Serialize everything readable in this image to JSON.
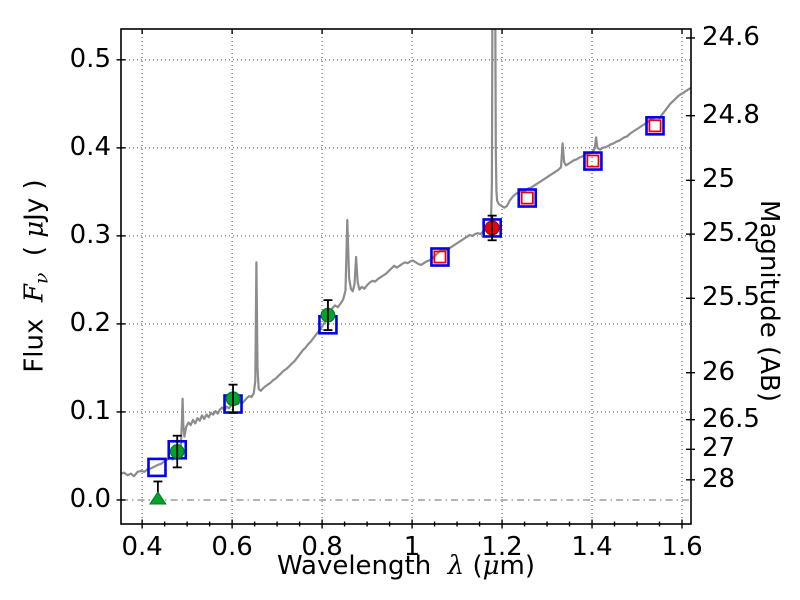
{
  "chart_data": {
    "type": "line",
    "title": "",
    "description": "Galaxy SED: best-fit model spectrum (gray) with observed and model photometry",
    "labels": {
      "x_prefix": "Wavelength  ",
      "x_lambda": "λ",
      "x_open": " (",
      "x_mu": "μ",
      "x_close": "m)",
      "y_flux": "Flux  ",
      "y_F": "F",
      "y_nu": "ν",
      "y_unit_open": "  ( ",
      "y_mu": "μ",
      "y_unit_close": "Jy )",
      "y_right": "Magnitude (AB)"
    },
    "axes": {
      "xlim": [
        0.353,
        1.62
      ],
      "ylim_flux": [
        -0.0273,
        0.535
      ],
      "x_ticks": [
        0.4,
        0.6,
        0.8,
        1.0,
        1.2,
        1.4,
        1.6
      ],
      "x_tick_labels": [
        "0.4",
        "0.6",
        "0.8",
        "1",
        "1.2",
        "1.4",
        "1.6"
      ],
      "x_minor_step": 0.05,
      "y_ticks": [
        0.0,
        0.1,
        0.2,
        0.3,
        0.4,
        0.5
      ],
      "y_tick_labels": [
        "0.0",
        "0.1",
        "0.2",
        "0.3",
        "0.4",
        "0.5"
      ],
      "mag_ticks": [
        24.6,
        24.8,
        25.0,
        25.2,
        25.5,
        26.0,
        26.5,
        27.0,
        28.0
      ],
      "mag_tick_labels": [
        "24.6",
        "24.8",
        "25",
        "25.2",
        "25.5",
        "26",
        "26.5",
        "27",
        "28"
      ],
      "mag_zero_point_ujy": 23.9,
      "grid": "dotted",
      "zero_line_style": "dash-dot"
    },
    "colors": {
      "spectrum": "#8c8c8c",
      "blue_square": "#0000ee",
      "red": "#ee0000",
      "red_dark": "#990000",
      "green_fill": "#00a32c",
      "green_edge": "#067a20",
      "errorbar": "#000000",
      "grid": "#555555",
      "zero_line": "#888888",
      "spine": "#000000"
    },
    "spectrum": {
      "name": "best-fit model spectrum",
      "points": [
        [
          0.353,
          0.03
        ],
        [
          0.36,
          0.031
        ],
        [
          0.368,
          0.028
        ],
        [
          0.375,
          0.03
        ],
        [
          0.382,
          0.027
        ],
        [
          0.39,
          0.032
        ],
        [
          0.398,
          0.033
        ],
        [
          0.405,
          0.032
        ],
        [
          0.412,
          0.035
        ],
        [
          0.42,
          0.036
        ],
        [
          0.428,
          0.038
        ],
        [
          0.435,
          0.04
        ],
        [
          0.442,
          0.041
        ],
        [
          0.45,
          0.044
        ],
        [
          0.456,
          0.046
        ],
        [
          0.462,
          0.048
        ],
        [
          0.468,
          0.046
        ],
        [
          0.474,
          0.05
        ],
        [
          0.48,
          0.054
        ],
        [
          0.486,
          0.06
        ],
        [
          0.4885,
          0.092
        ],
        [
          0.49,
          0.115
        ],
        [
          0.4915,
          0.085
        ],
        [
          0.494,
          0.072
        ],
        [
          0.498,
          0.083
        ],
        [
          0.503,
          0.088
        ],
        [
          0.508,
          0.085
        ],
        [
          0.513,
          0.091
        ],
        [
          0.518,
          0.087
        ],
        [
          0.523,
          0.093
        ],
        [
          0.528,
          0.09
        ],
        [
          0.533,
          0.096
        ],
        [
          0.538,
          0.092
        ],
        [
          0.543,
          0.097
        ],
        [
          0.548,
          0.094
        ],
        [
          0.553,
          0.099
        ],
        [
          0.558,
          0.097
        ],
        [
          0.563,
          0.101
        ],
        [
          0.568,
          0.098
        ],
        [
          0.573,
          0.103
        ],
        [
          0.578,
          0.105
        ],
        [
          0.583,
          0.102
        ],
        [
          0.588,
          0.106
        ],
        [
          0.593,
          0.104
        ],
        [
          0.598,
          0.108
        ],
        [
          0.603,
          0.11
        ],
        [
          0.608,
          0.112
        ],
        [
          0.613,
          0.109
        ],
        [
          0.618,
          0.112
        ],
        [
          0.623,
          0.11
        ],
        [
          0.628,
          0.113
        ],
        [
          0.633,
          0.116
        ],
        [
          0.638,
          0.118
        ],
        [
          0.643,
          0.117
        ],
        [
          0.648,
          0.121
        ],
        [
          0.6515,
          0.135
        ],
        [
          0.654,
          0.27
        ],
        [
          0.6565,
          0.15
        ],
        [
          0.659,
          0.126
        ],
        [
          0.664,
          0.124
        ],
        [
          0.669,
          0.127
        ],
        [
          0.674,
          0.129
        ],
        [
          0.679,
          0.131
        ],
        [
          0.685,
          0.133
        ],
        [
          0.691,
          0.136
        ],
        [
          0.697,
          0.138
        ],
        [
          0.703,
          0.141
        ],
        [
          0.709,
          0.144
        ],
        [
          0.715,
          0.147
        ],
        [
          0.721,
          0.149
        ],
        [
          0.727,
          0.152
        ],
        [
          0.733,
          0.155
        ],
        [
          0.739,
          0.158
        ],
        [
          0.745,
          0.162
        ],
        [
          0.751,
          0.166
        ],
        [
          0.757,
          0.17
        ],
        [
          0.763,
          0.173
        ],
        [
          0.769,
          0.177
        ],
        [
          0.775,
          0.18
        ],
        [
          0.781,
          0.184
        ],
        [
          0.787,
          0.188
        ],
        [
          0.793,
          0.192
        ],
        [
          0.799,
          0.196
        ],
        [
          0.805,
          0.201
        ],
        [
          0.811,
          0.207
        ],
        [
          0.817,
          0.213
        ],
        [
          0.823,
          0.218
        ],
        [
          0.829,
          0.221
        ],
        [
          0.835,
          0.219
        ],
        [
          0.841,
          0.223
        ],
        [
          0.847,
          0.228
        ],
        [
          0.852,
          0.238
        ],
        [
          0.856,
          0.318
        ],
        [
          0.86,
          0.252
        ],
        [
          0.864,
          0.24
        ],
        [
          0.868,
          0.237
        ],
        [
          0.872,
          0.245
        ],
        [
          0.8755,
          0.276
        ],
        [
          0.879,
          0.248
        ],
        [
          0.883,
          0.239
        ],
        [
          0.888,
          0.242
        ],
        [
          0.894,
          0.24
        ],
        [
          0.9,
          0.244
        ],
        [
          0.906,
          0.247
        ],
        [
          0.912,
          0.249
        ],
        [
          0.918,
          0.248
        ],
        [
          0.924,
          0.251
        ],
        [
          0.93,
          0.253
        ],
        [
          0.936,
          0.255
        ],
        [
          0.942,
          0.257
        ],
        [
          0.948,
          0.26
        ],
        [
          0.954,
          0.263
        ],
        [
          0.96,
          0.266
        ],
        [
          0.966,
          0.264
        ],
        [
          0.972,
          0.266
        ],
        [
          0.978,
          0.268
        ],
        [
          0.984,
          0.27
        ],
        [
          0.99,
          0.269
        ],
        [
          0.996,
          0.271
        ],
        [
          1.002,
          0.272
        ],
        [
          1.008,
          0.27
        ],
        [
          1.014,
          0.268
        ],
        [
          1.02,
          0.267
        ],
        [
          1.026,
          0.269
        ],
        [
          1.032,
          0.271
        ],
        [
          1.038,
          0.272
        ],
        [
          1.044,
          0.274
        ],
        [
          1.05,
          0.277
        ],
        [
          1.056,
          0.28
        ],
        [
          1.062,
          0.283
        ],
        [
          1.068,
          0.285
        ],
        [
          1.074,
          0.283
        ],
        [
          1.08,
          0.285
        ],
        [
          1.086,
          0.287
        ],
        [
          1.092,
          0.289
        ],
        [
          1.098,
          0.291
        ],
        [
          1.104,
          0.293
        ],
        [
          1.11,
          0.295
        ],
        [
          1.116,
          0.297
        ],
        [
          1.122,
          0.299
        ],
        [
          1.128,
          0.301
        ],
        [
          1.134,
          0.3
        ],
        [
          1.14,
          0.302
        ],
        [
          1.146,
          0.303
        ],
        [
          1.152,
          0.302
        ],
        [
          1.158,
          0.305
        ],
        [
          1.164,
          0.307
        ],
        [
          1.17,
          0.309
        ],
        [
          1.1755,
          0.315
        ],
        [
          1.1775,
          0.36
        ],
        [
          1.179,
          0.62
        ],
        [
          1.1845,
          0.62
        ],
        [
          1.186,
          0.4
        ],
        [
          1.1875,
          0.352
        ],
        [
          1.189,
          0.34
        ],
        [
          1.193,
          0.336
        ],
        [
          1.199,
          0.334
        ],
        [
          1.205,
          0.332
        ],
        [
          1.211,
          0.334
        ],
        [
          1.217,
          0.34
        ],
        [
          1.223,
          0.344
        ],
        [
          1.229,
          0.347
        ],
        [
          1.235,
          0.349
        ],
        [
          1.241,
          0.351
        ],
        [
          1.247,
          0.35
        ],
        [
          1.253,
          0.352
        ],
        [
          1.259,
          0.354
        ],
        [
          1.265,
          0.355
        ],
        [
          1.271,
          0.357
        ],
        [
          1.277,
          0.359
        ],
        [
          1.283,
          0.361
        ],
        [
          1.289,
          0.363
        ],
        [
          1.295,
          0.365
        ],
        [
          1.301,
          0.367
        ],
        [
          1.307,
          0.369
        ],
        [
          1.313,
          0.371
        ],
        [
          1.319,
          0.373
        ],
        [
          1.325,
          0.375
        ],
        [
          1.331,
          0.378
        ],
        [
          1.3345,
          0.405
        ],
        [
          1.338,
          0.384
        ],
        [
          1.342,
          0.38
        ],
        [
          1.348,
          0.382
        ],
        [
          1.354,
          0.384
        ],
        [
          1.36,
          0.386
        ],
        [
          1.366,
          0.387
        ],
        [
          1.372,
          0.389
        ],
        [
          1.378,
          0.39
        ],
        [
          1.384,
          0.392
        ],
        [
          1.39,
          0.393
        ],
        [
          1.396,
          0.394
        ],
        [
          1.402,
          0.396
        ],
        [
          1.406,
          0.399
        ],
        [
          1.409,
          0.412
        ],
        [
          1.412,
          0.4
        ],
        [
          1.418,
          0.398
        ],
        [
          1.424,
          0.4
        ],
        [
          1.43,
          0.401
        ],
        [
          1.436,
          0.402
        ],
        [
          1.442,
          0.404
        ],
        [
          1.448,
          0.405
        ],
        [
          1.454,
          0.407
        ],
        [
          1.46,
          0.408
        ],
        [
          1.466,
          0.41
        ],
        [
          1.472,
          0.412
        ],
        [
          1.478,
          0.413
        ],
        [
          1.484,
          0.416
        ],
        [
          1.49,
          0.418
        ],
        [
          1.496,
          0.42
        ],
        [
          1.502,
          0.422
        ],
        [
          1.508,
          0.424
        ],
        [
          1.514,
          0.426
        ],
        [
          1.52,
          0.428
        ],
        [
          1.526,
          0.431
        ],
        [
          1.532,
          0.433
        ],
        [
          1.538,
          0.434
        ],
        [
          1.544,
          0.435
        ],
        [
          1.55,
          0.434
        ],
        [
          1.556,
          0.438
        ],
        [
          1.562,
          0.442
        ],
        [
          1.568,
          0.446
        ],
        [
          1.574,
          0.45
        ],
        [
          1.58,
          0.453
        ],
        [
          1.586,
          0.456
        ],
        [
          1.592,
          0.459
        ],
        [
          1.598,
          0.461
        ],
        [
          1.604,
          0.463
        ],
        [
          1.61,
          0.465
        ],
        [
          1.616,
          0.467
        ],
        [
          1.62,
          0.468
        ]
      ]
    },
    "series": [
      {
        "name": "model photometry (blue open squares)",
        "marker": "open-square-blue",
        "points": [
          [
            0.433,
            0.037
          ],
          [
            0.478,
            0.057
          ],
          [
            0.602,
            0.109
          ],
          [
            0.813,
            0.199
          ],
          [
            1.062,
            0.276
          ],
          [
            1.178,
            0.309
          ],
          [
            1.256,
            0.343
          ],
          [
            1.402,
            0.385
          ],
          [
            1.54,
            0.425
          ]
        ]
      },
      {
        "name": "observed optical photometry (green filled circles)",
        "marker": "filled-circle-green",
        "points": [
          [
            0.478,
            0.055
          ],
          [
            0.602,
            0.115
          ],
          [
            0.813,
            0.21
          ]
        ],
        "errors": [
          0.018,
          0.016,
          0.017
        ]
      },
      {
        "name": "optical upper limit (green filled triangle)",
        "marker": "filled-triangle-green",
        "points": [
          [
            0.435,
            0.0
          ]
        ],
        "error_up": [
          0.021
        ]
      },
      {
        "name": "observed IR photometry (red filled circle)",
        "marker": "filled-circle-red",
        "points": [
          [
            1.178,
            0.309
          ]
        ],
        "errors": [
          0.014
        ]
      },
      {
        "name": "model IR photometry (red open squares)",
        "marker": "open-square-red",
        "points": [
          [
            1.062,
            0.276
          ],
          [
            1.256,
            0.343
          ],
          [
            1.402,
            0.385
          ],
          [
            1.54,
            0.425
          ]
        ]
      }
    ]
  }
}
